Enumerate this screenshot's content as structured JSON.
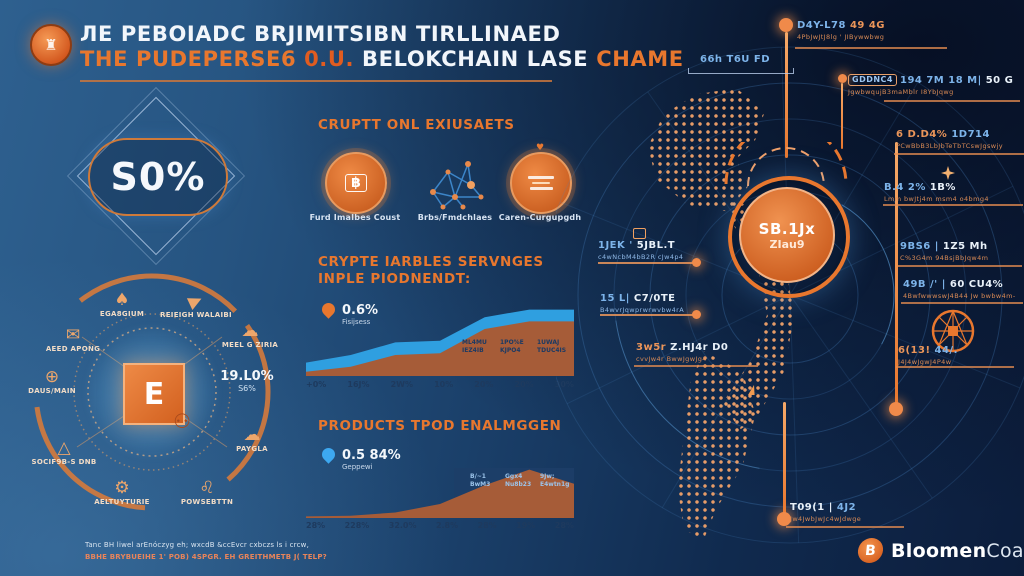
{
  "title": {
    "line1": "ЛЕ PEBOIADC BRJIMITSIBN TIRLLINAED",
    "parts": {
      "a": "THE PUDEPERSE6",
      "b": "0.U.",
      "c": "BELOKCHAIN LASE",
      "d": "CHAME"
    }
  },
  "left": {
    "diamond_value": "S0%",
    "wheel": {
      "center_glyph": "E",
      "stat": {
        "value": "19.L0%",
        "sub": "S6%"
      },
      "items": [
        {
          "icon": "mushroom-icon",
          "label": "EGA8GIUM"
        },
        {
          "icon": "paper-plane-icon",
          "label": "REIEIGH WALAIBI"
        },
        {
          "icon": "cloud-icon",
          "label": "MEEL G ZIRIA"
        },
        {
          "icon": "cloud-payment-icon",
          "label": "PAYGLA"
        },
        {
          "icon": "lion-icon",
          "label": "POWSEBTTN"
        },
        {
          "icon": "robot-icon",
          "label": "AELTUYTURIE"
        },
        {
          "icon": "pyramid-icon",
          "label": "SOCIF9B-S DNB"
        },
        {
          "icon": "globe-icon",
          "label": "DAUS/MAIN"
        },
        {
          "icon": "envelope-icon",
          "label": "AEED APONG"
        }
      ]
    },
    "footnote1": "Tanc BH liwel arEnóczyg eh; wxcdB &ccEvcr cxbczs ls i crcw,",
    "footnote2": "BBHE BRYBUEIHE 1' POB) 4SPGR. EH GREITHMETB J( TELP?"
  },
  "middle": {
    "h1": "CRUPTT ONL EXIUSAETS",
    "circles": [
      {
        "icon": "banknote-icon",
        "label": "Furd ImaIbes Coust"
      },
      {
        "icon": "network-icon",
        "label": "Brbs/Fmdchlaes"
      },
      {
        "icon": "document-coin-icon",
        "label": "Caren-Curgupgdh"
      }
    ],
    "h2a": "CRYPTE IARBLES SERVNGES",
    "h2b": "INPLE PIODNENDT:",
    "h3": "PRODUCTS TPOD ENALMGGEN"
  },
  "chart_data": [
    {
      "type": "area",
      "title": "CRYPTE IARBLES SERVNGES INPLE PIODNENDT",
      "categories": [
        "+0%",
        "16J%",
        "2W%",
        "10%",
        "20%",
        "20%",
        "30%"
      ],
      "series": [
        {
          "name": "upper-band",
          "color": "#2f9fe0",
          "values": [
            16,
            25,
            40,
            42,
            70,
            79,
            79
          ]
        },
        {
          "name": "lower-area",
          "color": "#a65c38",
          "values": [
            5,
            11,
            25,
            27,
            56,
            65,
            65
          ]
        }
      ],
      "ylim": [
        0,
        100
      ],
      "annotations": [
        {
          "l1": "ML4MU",
          "l2": "IEZ4IB"
        },
        {
          "l1": "1PO%E",
          "l2": "KJPO4"
        },
        {
          "l1": "1UWAJ",
          "l2": "TDUC4IS"
        }
      ],
      "stat": {
        "value": "0.6%",
        "label": "Fisijsess"
      },
      "legend": "none",
      "grid": false
    },
    {
      "type": "area",
      "title": "PRODUCTS TPOD ENALMGGEN",
      "categories": [
        "28%",
        "228%",
        "32.0%",
        "2.8%",
        "28%",
        "19%",
        "28%"
      ],
      "series": [
        {
          "name": "volume-area",
          "color": "#a65c38",
          "values": [
            2,
            3,
            7,
            18,
            42,
            62,
            44
          ]
        }
      ],
      "ylim": [
        0,
        100
      ],
      "annotations": [
        {
          "l1": "B/~1",
          "l2": "BwM3"
        },
        {
          "l1": "Ggx4",
          "l2": "Nu8b23"
        },
        {
          "l1": "9Jw;",
          "l2": "E4wtn1g"
        }
      ],
      "stat": {
        "value": "0.5 84%",
        "label": "Geppewi"
      },
      "legend": "none",
      "grid": false
    }
  ],
  "right": {
    "center_badge": {
      "line1": "SB.1Jx",
      "line2": "ZIau9"
    },
    "callouts": [
      {
        "m1": "D4Y-L78",
        "m2": "49 4G",
        "sub": "4PbJwJtJ8lg ' JIBywwbwg"
      },
      {
        "m1": "66h T6U FD",
        "m2": "",
        "sub": ""
      },
      {
        "badge": "GDDNC4",
        "m1": "194 7M 18 M|",
        "m2": "50 G",
        "sub": "JgwbwqujB3maMblr I8YbJqwg"
      },
      {
        "m1": "6 D.D4%",
        "m2": "1D714",
        "sub": "PCwBbB3LbJbTeTbTCswJgswjy"
      },
      {
        "m1": "B.4 2%",
        "m2": "1B%",
        "sub": "Lmm bwJtj4m msm4 o4bmg4"
      },
      {
        "m1": "1JEK '",
        "m2": "5JBL.T",
        "sub": "c4wNcbM4bB2R cJw4p4"
      },
      {
        "m1": "9BS6 |",
        "m2": "1Z5 Mh",
        "sub": "C%3G4m 94BsjBbJqw4m"
      },
      {
        "m1": "15 L|",
        "m2": "C7/0TE",
        "sub": "B4wvrJqwprwrwvbw4rA"
      },
      {
        "m1": "49B /' |",
        "m2": "60 CU4%",
        "sub": "4BwfwwwswJ4B44 Jw bwbw4m-"
      },
      {
        "m1": "3w5r",
        "m2": "Z.HJ4r D0",
        "sub": "cvvJw4r BwwJgwJg4"
      },
      {
        "m1": "6(13!",
        "m2": "44/.",
        "sub": "J4J4wJgwJ4P4w"
      },
      {
        "m1": "T09(1 |",
        "m2": "4J2",
        "sub": "Jw4JwbJwJc4wJdwge"
      }
    ],
    "logo": {
      "glyph": "B",
      "bold": "Bloomen",
      "light": "Coald"
    }
  },
  "colors": {
    "accent": "#e8772e",
    "callout_blue": "#7db4ea",
    "chart_blue": "#2f9fe0",
    "chart_brown": "#a65c38"
  }
}
